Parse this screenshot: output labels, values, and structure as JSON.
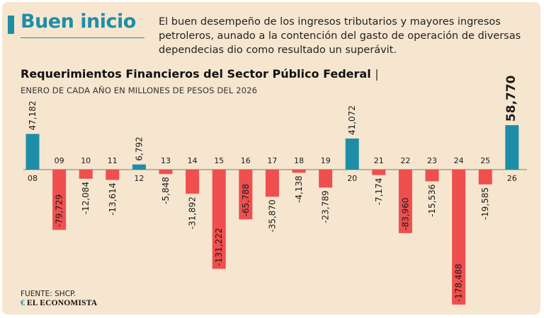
{
  "header": {
    "headline": "Buen inicio",
    "intro": "El buen desempeño de los ingresos tributarios y mayores ingresos petroleros, aunado a la contención del gasto de operación de diversas dependecias dio como resultado un superávit."
  },
  "chart_data": {
    "type": "bar",
    "title": "Requerimientos Financieros del Sector Público Federal",
    "title_separator": "|",
    "subtitle": "ENERO DE CADA AÑO EN MILLONES DE PESOS DEL 2026",
    "categories": [
      "08",
      "09",
      "10",
      "11",
      "12",
      "13",
      "14",
      "15",
      "16",
      "17",
      "18",
      "19",
      "20",
      "21",
      "22",
      "23",
      "24",
      "25",
      "26"
    ],
    "values": [
      47182,
      -79729,
      -12084,
      -13614,
      6792,
      -5848,
      -31892,
      -131222,
      -65788,
      -35870,
      -4138,
      -23789,
      41072,
      -7174,
      -83960,
      -15536,
      -178488,
      -19585,
      58770
    ],
    "value_labels": [
      "47,182",
      "-79,729",
      "-12,084",
      "-13,614",
      "6,792",
      "-5,848",
      "-31,892",
      "-131,222",
      "-65,788",
      "-35,870",
      "-4,138",
      "-23,789",
      "41,072",
      "-7,174",
      "-83,960",
      "-15,536",
      "-178,488",
      "-19,585",
      "58,770"
    ],
    "highlight_label": "26",
    "colors": {
      "positive": "#1e8ea7",
      "negative": "#ef4f4f"
    },
    "xlabel": "",
    "ylabel": "",
    "grid": false
  },
  "footer": {
    "source": "FUENTE: SHCP.",
    "publisher": "EL ECONOMISTA",
    "publisher_mark": "€"
  }
}
